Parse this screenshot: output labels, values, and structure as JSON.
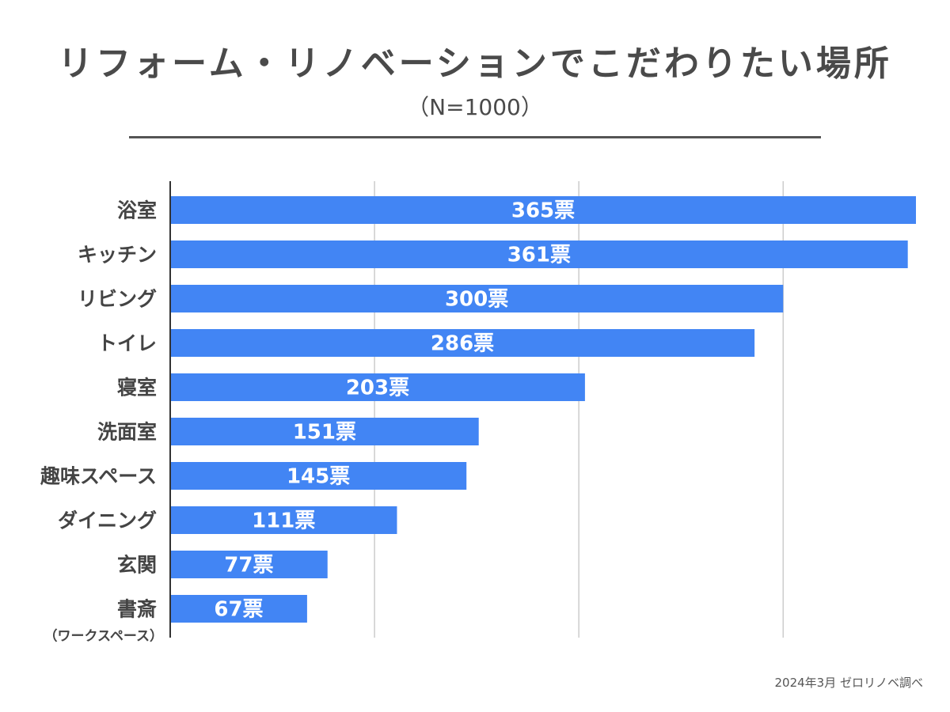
{
  "title": "リフォーム・リノベーションでこだわりたい場所",
  "subtitle": "（N=1000）",
  "source": "2024年3月 ゼロリノベ調べ",
  "colors": {
    "bar": "#4285f4",
    "grid": "#cccccc",
    "axis": "#333333",
    "text": "#444444"
  },
  "chart_data": {
    "type": "bar",
    "orientation": "horizontal",
    "title": "リフォーム・リノベーションでこだわりたい場所",
    "subtitle": "（N=1000）",
    "categories": [
      {
        "label": "浴室",
        "sub": ""
      },
      {
        "label": "キッチン",
        "sub": ""
      },
      {
        "label": "リビング",
        "sub": ""
      },
      {
        "label": "トイレ",
        "sub": ""
      },
      {
        "label": "寝室",
        "sub": ""
      },
      {
        "label": "洗面室",
        "sub": ""
      },
      {
        "label": "趣味スペース",
        "sub": ""
      },
      {
        "label": "ダイニング",
        "sub": ""
      },
      {
        "label": "玄関",
        "sub": ""
      },
      {
        "label": "書斎",
        "sub": "（ワークスペース）"
      }
    ],
    "values": [
      365,
      361,
      300,
      286,
      203,
      151,
      145,
      111,
      77,
      67
    ],
    "value_suffix": "票",
    "xlim": [
      0,
      370
    ],
    "gridlines": [
      100,
      200,
      300
    ],
    "xlabel": "",
    "ylabel": ""
  }
}
